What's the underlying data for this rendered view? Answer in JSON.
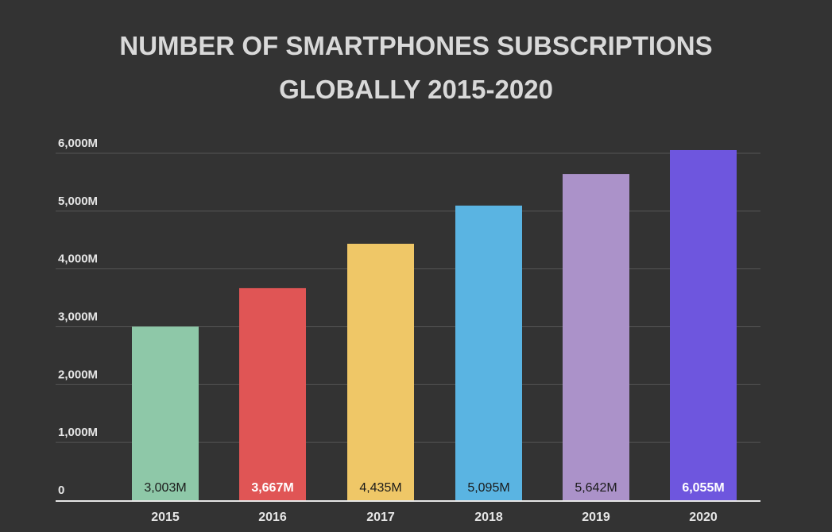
{
  "title_line1": "NUMBER OF SMARTPHONES SUBSCRIPTIONS",
  "title_line2": "GLOBALLY 2015-2020",
  "colors": {
    "background": "#333333",
    "grid": "#555555",
    "axis": "#e6e6e6",
    "text": "#e6e6e6"
  },
  "chart_data": {
    "type": "bar",
    "title": "NUMBER OF SMARTPHONES SUBSCRIPTIONS GLOBALLY 2015-2020",
    "categories": [
      "2015",
      "2016",
      "2017",
      "2018",
      "2019",
      "2020"
    ],
    "values": [
      3003,
      3667,
      4435,
      5095,
      5642,
      6055
    ],
    "data_labels": [
      "3,003M",
      "3,667M",
      "4,435M",
      "5,095M",
      "5,642M",
      "6,055M"
    ],
    "bar_colors": [
      "#8ec8a8",
      "#e05555",
      "#efc767",
      "#5ab4e2",
      "#ab92c9",
      "#6e56de"
    ],
    "label_colors": [
      "#1a1a1a",
      "#ffffff",
      "#1a1a1a",
      "#1a1a1a",
      "#1a1a1a",
      "#ffffff"
    ],
    "label_bold": [
      false,
      true,
      false,
      false,
      false,
      true
    ],
    "y_ticks": [
      0,
      1000,
      2000,
      3000,
      4000,
      5000,
      6000
    ],
    "y_tick_labels": [
      "0",
      "1,000M",
      "2,000M",
      "3,000M",
      "4,000M",
      "5,000M",
      "6,000M"
    ],
    "ylim": [
      0,
      6000
    ],
    "xlabel": "",
    "ylabel": "",
    "grid": true,
    "legend": "none"
  }
}
